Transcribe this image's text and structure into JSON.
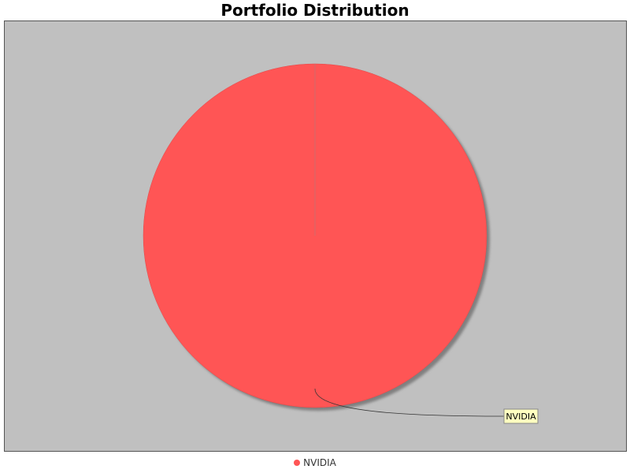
{
  "chart_data": {
    "type": "pie",
    "title": "Portfolio Distribution",
    "slices": [
      {
        "label": "NVIDIA",
        "value": 100,
        "color": "#ff5555"
      }
    ],
    "background": "#c0c0c0",
    "legend_position": "bottom"
  }
}
